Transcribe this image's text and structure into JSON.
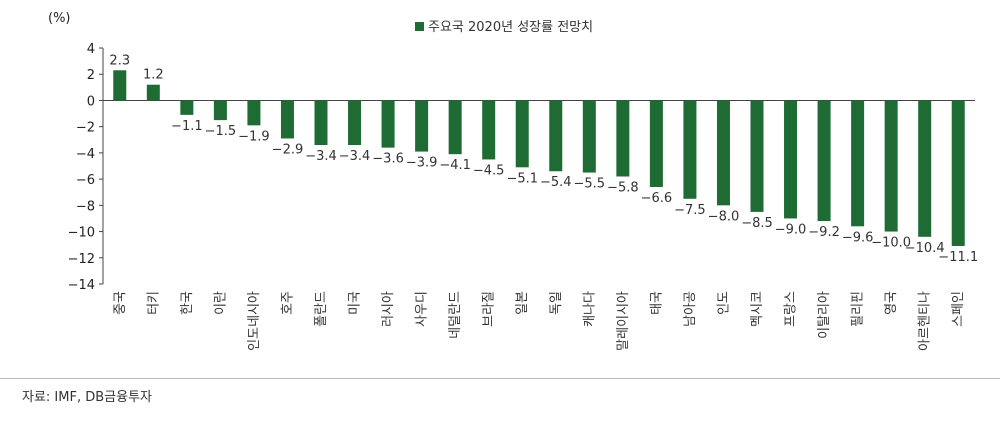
{
  "chart_data": {
    "type": "bar",
    "unit_label": "(%)",
    "legend": "주요국 2020년 성장률 전망치",
    "legend_color": "#1e6b34",
    "bar_color": "#1e6b34",
    "ylim": [
      -14,
      4
    ],
    "yticks": [
      4,
      2,
      0,
      -2,
      -4,
      -6,
      -8,
      -10,
      -12,
      -14
    ],
    "categories": [
      "중국",
      "터키",
      "한국",
      "이란",
      "인도네시아",
      "호주",
      "폴란드",
      "미국",
      "러시아",
      "사우디",
      "네덜란드",
      "브라질",
      "일본",
      "독일",
      "캐나다",
      "말레이시아",
      "태국",
      "남아공",
      "인도",
      "멕시코",
      "프랑스",
      "이탈리아",
      "필리핀",
      "영국",
      "아르헨티나",
      "스페인"
    ],
    "values": [
      2.3,
      1.2,
      -1.1,
      -1.5,
      -1.9,
      -2.9,
      -3.4,
      -3.4,
      -3.6,
      -3.9,
      -4.1,
      -4.5,
      -5.1,
      -5.4,
      -5.5,
      -5.8,
      -6.6,
      -7.5,
      -8.0,
      -8.5,
      -9.0,
      -9.2,
      -9.6,
      -10.0,
      -10.4,
      -11.1
    ],
    "value_labels": [
      "2.3",
      "1.2",
      "−1.1",
      "−1.5",
      "−1.9",
      "−2.9",
      "−3.4",
      "−3.4",
      "−3.6",
      "−3.9",
      "−4.1",
      "−4.5",
      "−5.1",
      "−5.4",
      "−5.5",
      "−5.8",
      "−6.6",
      "−7.5",
      "−8.0",
      "−8.5",
      "−9.0",
      "−9.2",
      "−9.6",
      "−10.0",
      "−10.4",
      "−11.1"
    ],
    "tick_labels": [
      "4",
      "2",
      "0",
      "−2",
      "−4",
      "−6",
      "−8",
      "−10",
      "−12",
      "−14"
    ]
  },
  "source": "자료: IMF, DB금융투자"
}
